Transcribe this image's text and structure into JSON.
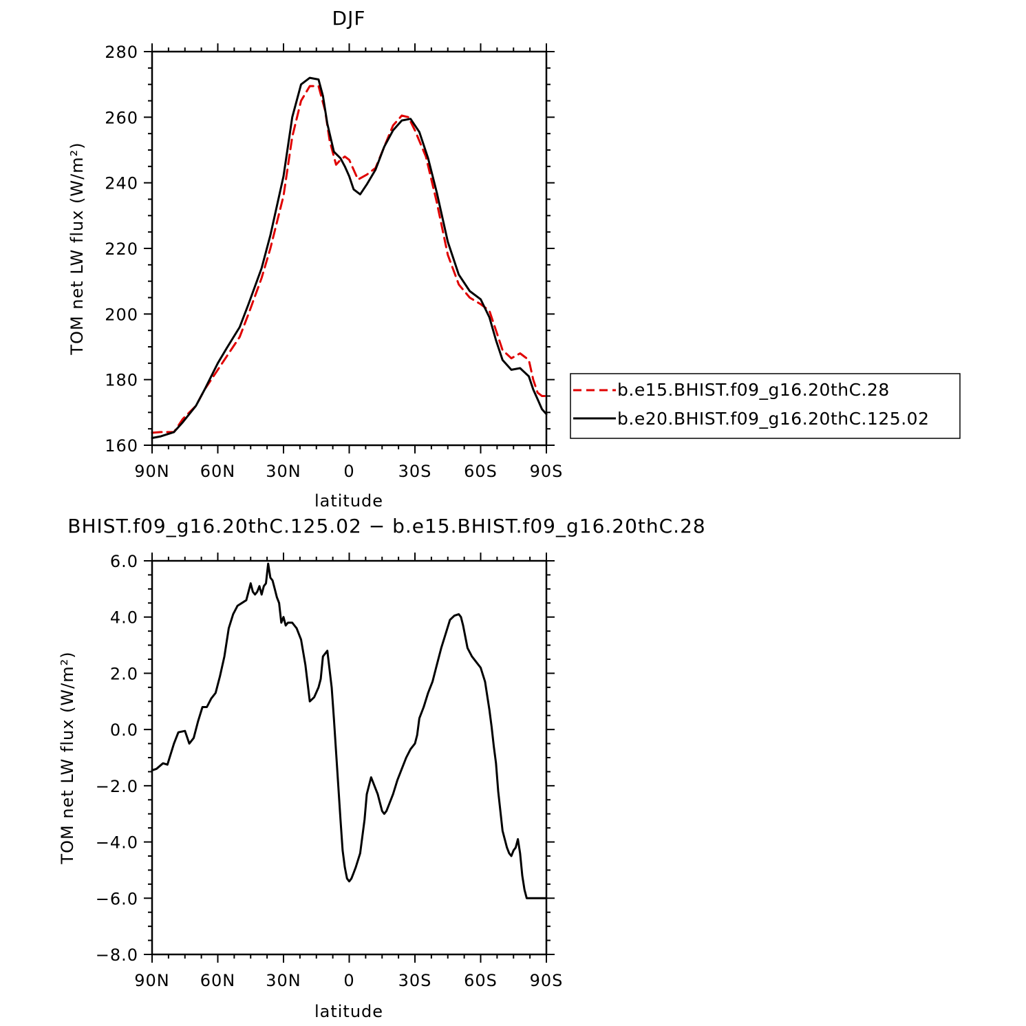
{
  "chart_data": [
    {
      "type": "line",
      "title": "DJF",
      "xlabel": "latitude",
      "ylabel": "TOM net LW flux (W/m²)",
      "xlim": [
        -90,
        90
      ],
      "ylim": [
        160,
        280
      ],
      "xticks": [
        -90,
        -60,
        -30,
        0,
        30,
        60,
        90
      ],
      "xtick_labels": [
        "90N",
        "60N",
        "30N",
        "0",
        "30S",
        "60S",
        "90S"
      ],
      "yticks": [
        160,
        180,
        200,
        220,
        240,
        260,
        280
      ],
      "ytick_labels": [
        "160",
        "180",
        "200",
        "220",
        "240",
        "260",
        "280"
      ],
      "grid": false,
      "legend_position": "right",
      "series": [
        {
          "name": "b.e15.BHIST.f09_g16.20thC.28",
          "color": "#e00000",
          "style": "dashed",
          "x": [
            -90,
            -86,
            -80,
            -76,
            -70,
            -66,
            -60,
            -56,
            -50,
            -46,
            -40,
            -36,
            -30,
            -26,
            -22,
            -18,
            -14,
            -11,
            -9,
            -6,
            -4,
            -2,
            0,
            2,
            4,
            8,
            12,
            16,
            20,
            24,
            27,
            30,
            35,
            40,
            45,
            50,
            55,
            60,
            64,
            67,
            70,
            74,
            78,
            82,
            84,
            86,
            88,
            90
          ],
          "y": [
            163.8,
            164,
            164,
            168,
            172,
            177,
            183,
            187,
            193,
            200,
            211,
            220,
            236,
            254,
            265,
            269.5,
            269.5,
            262,
            253,
            245.5,
            247,
            248,
            247,
            244,
            241,
            242.5,
            244.5,
            251,
            257.5,
            260.5,
            260,
            256,
            248,
            234,
            218,
            209,
            205,
            203,
            201,
            195,
            189,
            186.5,
            188,
            186,
            180,
            176,
            175,
            175
          ]
        },
        {
          "name": "b.e20.BHIST.f09_g16.20thC.125.02",
          "color": "#000000",
          "style": "solid",
          "x": [
            -90,
            -86,
            -80,
            -76,
            -70,
            -66,
            -60,
            -56,
            -50,
            -46,
            -40,
            -36,
            -30,
            -26,
            -22,
            -18,
            -14,
            -12,
            -10,
            -7,
            -4,
            -2,
            0,
            2,
            5,
            8,
            12,
            16,
            20,
            24,
            28,
            32,
            36,
            40,
            45,
            50,
            55,
            60,
            64,
            67,
            70,
            74,
            78,
            82,
            84,
            86,
            88,
            90
          ],
          "y": [
            162.2,
            162.7,
            164,
            167,
            172,
            177,
            185,
            189.5,
            196,
            203,
            214,
            224,
            242,
            260,
            270,
            272,
            271.5,
            266.5,
            258,
            249.5,
            247.5,
            245,
            242,
            238,
            236.5,
            239.5,
            244,
            251,
            256,
            259,
            259.5,
            255.5,
            247.5,
            237,
            222,
            212,
            207,
            204.5,
            199,
            192,
            186,
            183,
            183.5,
            181,
            177,
            174,
            171,
            169.5
          ]
        }
      ]
    },
    {
      "type": "line",
      "title": "BHIST.f09_g16.20thC.125.02 − b.e15.BHIST.f09_g16.20thC.28",
      "xlabel": "latitude",
      "ylabel": "TOM net LW flux (W/m²)",
      "xlim": [
        -90,
        90
      ],
      "ylim": [
        -8,
        6
      ],
      "xticks": [
        -90,
        -60,
        -30,
        0,
        30,
        60,
        90
      ],
      "xtick_labels": [
        "90N",
        "60N",
        "30N",
        "0",
        "30S",
        "60S",
        "90S"
      ],
      "yticks": [
        -8,
        -6,
        -4,
        -2,
        0,
        2,
        4,
        6
      ],
      "ytick_labels": [
        "−8.0",
        "−6.0",
        "−4.0",
        "−2.0",
        "0.0",
        "2.0",
        "4.0",
        "6.0"
      ],
      "grid": false,
      "series": [
        {
          "color": "#000000",
          "style": "solid",
          "x": [
            -90,
            -88,
            -85,
            -83,
            -80,
            -78,
            -75,
            -73,
            -71,
            -69,
            -67,
            -65,
            -63,
            -61,
            -59,
            -57,
            -55,
            -53,
            -51,
            -49,
            -47,
            -45,
            -44,
            -43,
            -42,
            -41,
            -40,
            -39,
            -38,
            -37,
            -36,
            -35,
            -34,
            -33,
            -32,
            -31,
            -30,
            -29,
            -28,
            -27,
            -26,
            -25,
            -24,
            -22,
            -20,
            -18,
            -16,
            -14,
            -13,
            -12,
            -10,
            -8,
            -7,
            -6,
            -5,
            -4,
            -3,
            -2,
            -1,
            0,
            1,
            2,
            3,
            5,
            7,
            8,
            10,
            12,
            13,
            14,
            15,
            16,
            17,
            18,
            20,
            22,
            24,
            26,
            28,
            30,
            31,
            32,
            34,
            36,
            38,
            40,
            42,
            44,
            46,
            48,
            50,
            51,
            52,
            53,
            54,
            56,
            58,
            60,
            62,
            64,
            65,
            66,
            67,
            68,
            70,
            71,
            72,
            73,
            74,
            75,
            76,
            77,
            78,
            79,
            80,
            81,
            82,
            83,
            84,
            85,
            86,
            87,
            88,
            89,
            90
          ],
          "y": [
            -1.45,
            -1.4,
            -1.2,
            -1.25,
            -0.5,
            -0.1,
            -0.05,
            -0.5,
            -0.3,
            0.3,
            0.8,
            0.8,
            1.1,
            1.3,
            1.9,
            2.6,
            3.6,
            4.1,
            4.4,
            4.5,
            4.6,
            5.2,
            4.9,
            4.8,
            4.9,
            5.1,
            4.8,
            5.1,
            5.2,
            5.9,
            5.4,
            5.3,
            5.0,
            4.7,
            4.5,
            3.8,
            4.0,
            3.7,
            3.8,
            3.8,
            3.8,
            3.7,
            3.6,
            3.2,
            2.3,
            1.0,
            1.15,
            1.5,
            1.8,
            2.6,
            2.8,
            1.5,
            0.4,
            -0.8,
            -2.0,
            -3.2,
            -4.3,
            -4.9,
            -5.3,
            -5.4,
            -5.3,
            -5.1,
            -4.9,
            -4.4,
            -3.2,
            -2.3,
            -1.7,
            -2.1,
            -2.3,
            -2.6,
            -2.9,
            -3.0,
            -2.9,
            -2.7,
            -2.3,
            -1.8,
            -1.4,
            -1.0,
            -0.7,
            -0.5,
            -0.2,
            0.4,
            0.8,
            1.3,
            1.7,
            2.3,
            2.9,
            3.4,
            3.9,
            4.05,
            4.1,
            4.0,
            3.7,
            3.3,
            2.9,
            2.6,
            2.4,
            2.2,
            1.7,
            0.7,
            0.1,
            -0.6,
            -1.2,
            -2.2,
            -3.6,
            -3.9,
            -4.2,
            -4.4,
            -4.5,
            -4.3,
            -4.2,
            -3.9,
            -4.4,
            -5.2,
            -5.7,
            -6.0,
            -6.0,
            -6.0,
            -6.0,
            -6.0,
            -6.0,
            -6.0,
            -6.0,
            -6.0,
            -6.0
          ]
        }
      ]
    }
  ]
}
